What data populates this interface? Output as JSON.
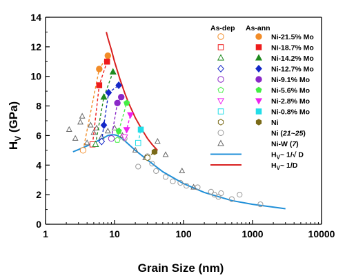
{
  "chart_data": {
    "type": "scatter",
    "xlabel": "Grain Size (nm)",
    "ylabel": "H",
    "ylabel_sub": "V",
    "ylabel_unit": " (GPa)",
    "xscale": "log",
    "xlim": [
      1,
      10000
    ],
    "ylim": [
      0,
      14
    ],
    "xticks": [
      1,
      10,
      100,
      1000,
      10000
    ],
    "xtick_labels": [
      "1",
      "10",
      "100",
      "1000",
      "10000"
    ],
    "yticks": [
      0,
      2,
      4,
      6,
      8,
      10,
      12,
      14
    ],
    "ytick_labels": [
      "0",
      "2",
      "4",
      "6",
      "8",
      "10",
      "12",
      "14"
    ],
    "grid": false,
    "legend_position": "top-right",
    "legend_headers": {
      "as_dep": "As-dep",
      "as_ann": "As-ann"
    },
    "series": [
      {
        "name": "Ni-21.5% Mo",
        "color": "#f28c28",
        "marker": "circle",
        "dep": [
          3.5,
          5.0
        ],
        "ann": [
          [
            6.0,
            10.5
          ],
          [
            8.0,
            11.4
          ]
        ]
      },
      {
        "name": "Ni-18.7% Mo",
        "color": "#ee1c1c",
        "marker": "square",
        "dep": [
          4.8,
          5.4
        ],
        "ann": [
          [
            6.0,
            9.4
          ],
          [
            7.8,
            11.0
          ]
        ]
      },
      {
        "name": "Ni-14.2% Mo",
        "color": "#1f8a1f",
        "marker": "triangle-up",
        "dep": [
          5.3,
          5.4
        ],
        "ann": [
          [
            7.0,
            8.6
          ],
          [
            9.5,
            10.3
          ]
        ]
      },
      {
        "name": "Ni-12.7% Mo",
        "color": "#1428c8",
        "marker": "diamond",
        "dep": [
          6.5,
          5.6
        ],
        "ann": [
          [
            7.0,
            6.7
          ],
          [
            8.2,
            8.9
          ],
          [
            11.5,
            9.4
          ]
        ]
      },
      {
        "name": "Ni-9.1% Mo",
        "color": "#8a28c8",
        "marker": "circle",
        "dep": [
          9.0,
          5.8
        ],
        "ann": [
          [
            11.0,
            8.2
          ],
          [
            12.5,
            8.6
          ]
        ]
      },
      {
        "name": "Ni-5.6% Mo",
        "color": "#44ee44",
        "marker": "pentagon",
        "dep": [
          11.0,
          5.7
        ],
        "ann": [
          [
            11.5,
            6.3
          ],
          [
            15.0,
            8.2
          ]
        ]
      },
      {
        "name": "Ni-2.8% Mo",
        "color": "#ee22ee",
        "marker": "triangle-down",
        "dep": [
          14.0,
          5.9
        ],
        "ann": [
          [
            15.0,
            6.4
          ],
          [
            17.0,
            7.4
          ]
        ]
      },
      {
        "name": "Ni-0.8% Mo",
        "color": "#22dde8",
        "marker": "square",
        "dep": [
          22.0,
          5.5
        ],
        "ann": [
          [
            24.0,
            6.4
          ]
        ]
      },
      {
        "name": "Ni",
        "color": "#7a6a18",
        "marker": "hexagon",
        "dep": [
          30.0,
          4.5
        ],
        "ann": [
          [
            38.0,
            4.9
          ]
        ]
      }
    ],
    "reference_series": [
      {
        "name": "Ni (21~25)",
        "color": "#999999",
        "marker": "circle",
        "points": [
          [
            14,
            5.8
          ],
          [
            22,
            3.9
          ],
          [
            30,
            4.6
          ],
          [
            35,
            4.1
          ],
          [
            40,
            3.6
          ],
          [
            55,
            3.2
          ],
          [
            70,
            2.9
          ],
          [
            90,
            2.8
          ],
          [
            110,
            2.6
          ],
          [
            160,
            2.5
          ],
          [
            250,
            2.2
          ],
          [
            280,
            2.0
          ],
          [
            320,
            1.85
          ],
          [
            350,
            2.1
          ],
          [
            500,
            1.7
          ],
          [
            650,
            2.0
          ],
          [
            1300,
            1.35
          ]
        ]
      },
      {
        "name": "Ni-W (7)",
        "color": "#666666",
        "marker": "triangle-up",
        "points": [
          [
            2.2,
            6.4
          ],
          [
            2.7,
            5.8
          ],
          [
            3.2,
            6.9
          ],
          [
            3.4,
            7.3
          ],
          [
            4.0,
            5.5
          ],
          [
            4.5,
            6.7
          ],
          [
            5.0,
            6.2
          ],
          [
            5.5,
            6.5
          ],
          [
            6.5,
            5.9
          ],
          [
            8.0,
            6.3
          ],
          [
            10.0,
            6.5
          ],
          [
            13.0,
            6.0
          ],
          [
            20.0,
            5.0
          ],
          [
            28.0,
            4.5
          ],
          [
            42.0,
            5.6
          ],
          [
            55.0,
            4.7
          ],
          [
            95.0,
            3.6
          ],
          [
            140.0,
            2.5
          ]
        ]
      }
    ],
    "fits": [
      {
        "name": "Hv~ 1/√D",
        "color": "#1f8fd8",
        "x": [
          2.5,
          3,
          4,
          5,
          6,
          7,
          8,
          9,
          10,
          11,
          12,
          14,
          20,
          30,
          50,
          100,
          200,
          500,
          1000,
          3000
        ],
        "y": [
          4.9,
          5.05,
          5.3,
          5.5,
          5.7,
          5.85,
          6.0,
          6.05,
          6.05,
          6.0,
          5.9,
          5.65,
          5.0,
          4.35,
          3.55,
          2.75,
          2.15,
          1.6,
          1.35,
          1.05
        ]
      },
      {
        "name": "Hv~ 1/D",
        "color": "#d81f1f",
        "x": [
          7.6,
          8,
          9,
          10,
          12,
          14,
          16,
          20,
          25,
          30,
          35,
          42
        ],
        "y": [
          13.0,
          12.6,
          11.8,
          11.0,
          9.8,
          8.9,
          8.2,
          7.2,
          6.4,
          5.8,
          5.4,
          5.0
        ]
      }
    ],
    "legend_entries": [
      {
        "label": "Ni-21.5% Mo"
      },
      {
        "label": "Ni-18.7% Mo"
      },
      {
        "label": "Ni-14.2% Mo"
      },
      {
        "label": "Ni-12.7% Mo"
      },
      {
        "label": "Ni-9.1% Mo"
      },
      {
        "label": "Ni-5.6% Mo"
      },
      {
        "label": "Ni-2.8% Mo"
      },
      {
        "label": "Ni-0.8% Mo"
      },
      {
        "label": "Ni"
      },
      {
        "label_pre": "Ni (",
        "label_ital": "21~25",
        "label_post": ")"
      },
      {
        "label_pre": "Ni-W (",
        "label_ital": "7",
        "label_post": ")"
      },
      {
        "fit_label": "H",
        "fit_sub": "V",
        "fit_rest": "~ 1/√ D"
      },
      {
        "fit_label": "H",
        "fit_sub": "V",
        "fit_rest": "~ 1/D"
      }
    ]
  }
}
